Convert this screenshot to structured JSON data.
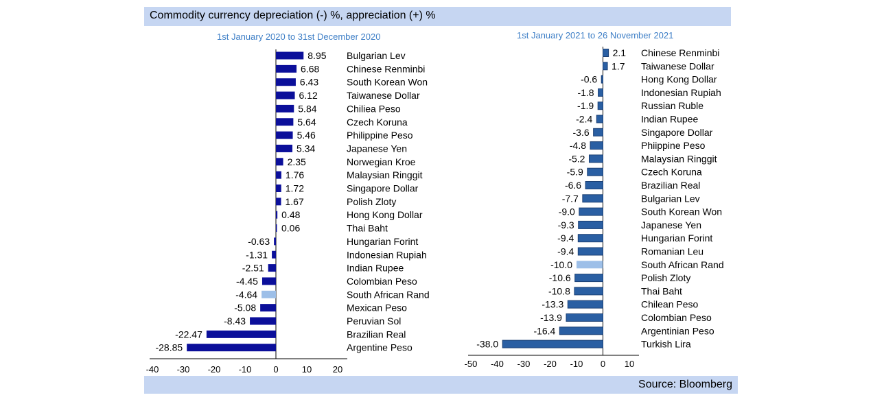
{
  "title": "Commodity currency depreciation (-) %, appreciation (+) %",
  "source": "Source: Bloomberg",
  "colors": {
    "bar_left": "#0b0f9a",
    "bar_right": "#2a5fa3",
    "highlight": "#9dbfe8",
    "band": "#c6d6f2",
    "subtitle": "#3d7ec6"
  },
  "chart_data": [
    {
      "type": "bar",
      "orientation": "horizontal",
      "subtitle": "1st January 2020 to 31st December 2020",
      "xlim": [
        -40,
        20
      ],
      "xticks": [
        "-40",
        "-30",
        "-20",
        "-10",
        "0",
        "10",
        "20"
      ],
      "highlight_category": "South African Rand",
      "categories": [
        "Bulgarian Lev",
        "Chinese Renminbi",
        "South Korean Won",
        "Taiwanese Dollar",
        "Chiliea Peso",
        "Czech Koruna",
        "Philippine Peso",
        "Japanese Yen",
        "Norwegian Kroe",
        "Malaysian Ringgit",
        "Singapore Dollar",
        "Polish Zloty",
        "Hong Kong Dollar",
        "Thai Baht",
        "Hungarian Forint",
        "Indonesian Rupiah",
        "Indian Rupee",
        "Colombian Peso",
        "South African Rand",
        "Mexican Peso",
        "Peruvian Sol",
        "Brazilian Real",
        "Argentine Peso"
      ],
      "values": [
        8.95,
        6.68,
        6.43,
        6.12,
        5.84,
        5.64,
        5.46,
        5.34,
        2.35,
        1.76,
        1.72,
        1.67,
        0.48,
        0.06,
        -0.63,
        -1.31,
        -2.51,
        -4.45,
        -4.64,
        -5.08,
        -8.43,
        -22.47,
        -28.85
      ],
      "value_labels": [
        "8.95",
        "6.68",
        "6.43",
        "6.12",
        "5.84",
        "5.64",
        "5.46",
        "5.34",
        "2.35",
        "1.76",
        "1.72",
        "1.67",
        "0.48",
        "0.06",
        "-0.63",
        "-1.31",
        "-2.51",
        "-4.45",
        "-4.64",
        "-5.08",
        "-8.43",
        "-22.47",
        "-28.85"
      ]
    },
    {
      "type": "bar",
      "orientation": "horizontal",
      "subtitle": "1st January 2021 to 26 November 2021",
      "xlim": [
        -50,
        10
      ],
      "xticks": [
        "-50",
        "-40",
        "-30",
        "-20",
        "-10",
        "0",
        "10"
      ],
      "highlight_category": "South African Rand",
      "categories": [
        "Chinese Renminbi",
        "Taiwanese Dollar",
        "Hong Kong Dollar",
        "Indonesian Rupiah",
        "Russian Ruble",
        "Indian Rupee",
        "Singapore Dollar",
        "Phiippine Peso",
        "Malaysian Ringgit",
        "Czech Koruna",
        "Brazilian Real",
        "Bulgarian Lev",
        "South Korean Won",
        "Japanese Yen",
        "Hungarian Forint",
        "Romanian Leu",
        "South African Rand",
        "Polish Zloty",
        "Thai Baht",
        "Chilean Peso",
        "Colombian Peso",
        "Argentinian Peso",
        "Turkish Lira"
      ],
      "values": [
        2.1,
        1.7,
        -0.6,
        -1.8,
        -1.9,
        -2.4,
        -3.6,
        -4.8,
        -5.2,
        -5.9,
        -6.6,
        -7.7,
        -9.0,
        -9.3,
        -9.4,
        -9.4,
        -10.0,
        -10.6,
        -10.8,
        -13.3,
        -13.9,
        -16.4,
        -38.0
      ],
      "value_labels": [
        "2.1",
        "1.7",
        "-0.6",
        "-1.8",
        "-1.9",
        "-2.4",
        "-3.6",
        "-4.8",
        "-5.2",
        "-5.9",
        "-6.6",
        "-7.7",
        "-9.0",
        "-9.3",
        "-9.4",
        "-9.4",
        "-10.0",
        "-10.6",
        "-10.8",
        "-13.3",
        "-13.9",
        "-16.4",
        "-38.0"
      ]
    }
  ]
}
